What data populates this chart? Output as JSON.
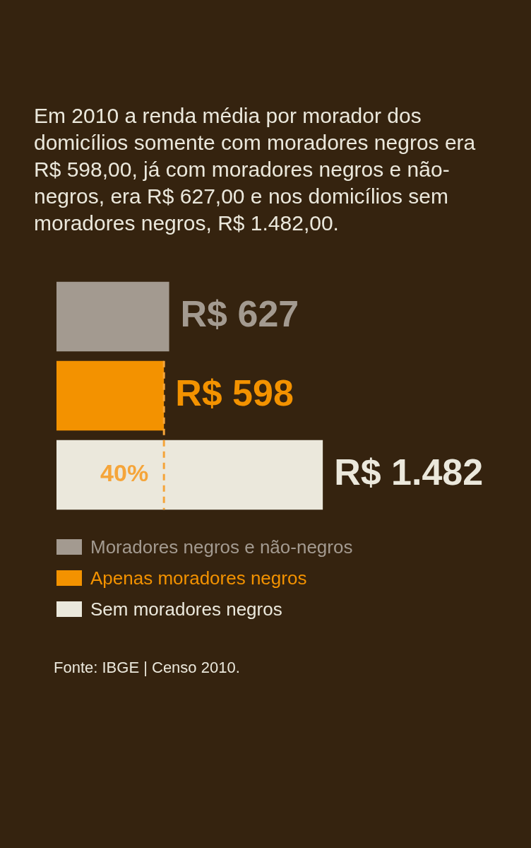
{
  "chart_data": {
    "type": "bar",
    "orientation": "horizontal",
    "title": "Em 2010 a renda média por morador dos domicílios somente com moradores negros era R$ 598,00, já com moradores negros e não-negros, era R$ 627,00 e nos domicílios sem moradores negros, R$ 1.482,00.",
    "categories": [
      null
    ],
    "series": [
      {
        "name": "Moradores negros e não-negros",
        "color": "#a39a90",
        "values": [
          627
        ],
        "value_labels": [
          "R$ 627"
        ]
      },
      {
        "name": "Apenas moradores negros",
        "color": "#f39200",
        "values": [
          598
        ],
        "value_labels": [
          "R$ 598"
        ]
      },
      {
        "name": "Sem moradores negros",
        "color": "#ebe8dc",
        "values": [
          1482
        ],
        "value_labels": [
          "R$ 1.482"
        ]
      }
    ],
    "ref_lines": [
      {
        "axis": "x",
        "value": 598,
        "color": "#f5a53a",
        "line_style": "dashed"
      }
    ],
    "legend": "bottom",
    "annotations": [
      "40%",
      "Fonte: IBGE | Censo 2010."
    ]
  }
}
